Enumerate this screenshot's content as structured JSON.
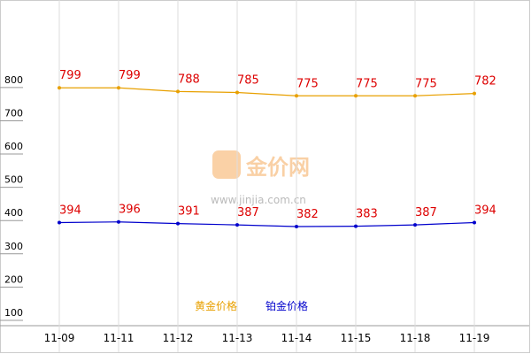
{
  "chart_data": {
    "type": "line",
    "categories": [
      "11-09",
      "11-11",
      "11-12",
      "11-13",
      "11-14",
      "11-15",
      "11-18",
      "11-19"
    ],
    "series": [
      {
        "name": "黄金价格",
        "color": "#e8a000",
        "values": [
          799,
          799,
          788,
          785,
          775,
          775,
          775,
          782
        ]
      },
      {
        "name": "铂金价格",
        "color": "#0000cc",
        "values": [
          394,
          396,
          391,
          387,
          382,
          383,
          387,
          394
        ]
      }
    ],
    "ylim": [
      84,
      1063
    ],
    "yticks": [
      100,
      200,
      300,
      400,
      500,
      600,
      700,
      800
    ],
    "value_label_color": "#dd0000",
    "watermark": {
      "name": "金价网",
      "url": "www.jinjia.com.cn"
    }
  }
}
